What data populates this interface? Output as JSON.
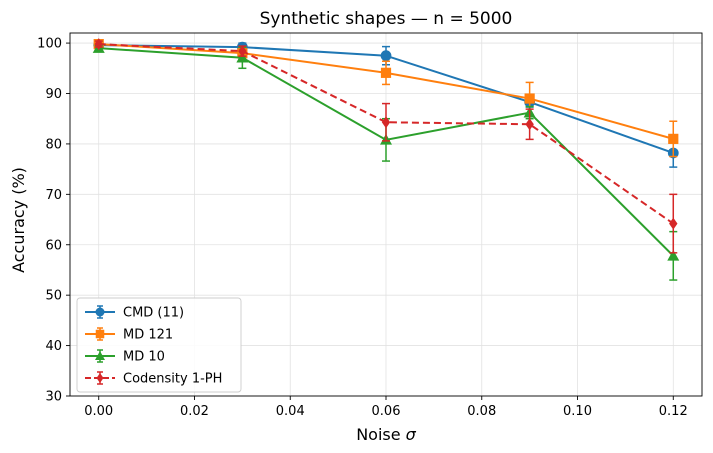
{
  "chart_data": {
    "type": "line",
    "title": "Synthetic shapes — n = 5000",
    "xlabel_prefix": "Noise ",
    "xlabel_symbol": "σ",
    "ylabel": "Accuracy (%)",
    "xlim": [
      -0.006,
      0.126
    ],
    "ylim": [
      30,
      102
    ],
    "xticks": [
      0.0,
      0.02,
      0.04,
      0.06,
      0.08,
      0.1,
      0.12
    ],
    "xtick_labels": [
      "0.00",
      "0.02",
      "0.04",
      "0.06",
      "0.08",
      "0.10",
      "0.12"
    ],
    "yticks": [
      30,
      40,
      50,
      60,
      70,
      80,
      90,
      100
    ],
    "ytick_labels": [
      "30",
      "40",
      "50",
      "60",
      "70",
      "80",
      "90",
      "100"
    ],
    "grid": true,
    "legend_position": "lower-left",
    "x": [
      0.0,
      0.03,
      0.06,
      0.09,
      0.12
    ],
    "series": [
      {
        "name": "CMD (11)",
        "color": "#1f77b4",
        "marker": "circle",
        "linestyle": "solid",
        "values": [
          99.6,
          99.2,
          97.5,
          88.3,
          78.2
        ],
        "errors": [
          0.6,
          0.8,
          1.8,
          1.0,
          2.8
        ]
      },
      {
        "name": "MD 121",
        "color": "#ff7f0e",
        "marker": "square",
        "linestyle": "solid",
        "values": [
          99.8,
          98.0,
          94.1,
          89.0,
          81.0
        ],
        "errors": [
          0.4,
          1.2,
          2.3,
          3.2,
          3.5
        ]
      },
      {
        "name": "MD 10",
        "color": "#2ca02c",
        "marker": "triangle",
        "linestyle": "solid",
        "values": [
          99.0,
          97.1,
          80.8,
          86.2,
          57.8
        ],
        "errors": [
          0.5,
          2.1,
          4.2,
          1.2,
          4.8
        ]
      },
      {
        "name": "Codensity 1-PH",
        "color": "#d62728",
        "marker": "diamond",
        "linestyle": "dashed",
        "values": [
          99.8,
          98.4,
          84.3,
          83.9,
          64.2
        ],
        "errors": [
          0.6,
          1.0,
          3.7,
          3.0,
          5.8
        ]
      }
    ]
  }
}
